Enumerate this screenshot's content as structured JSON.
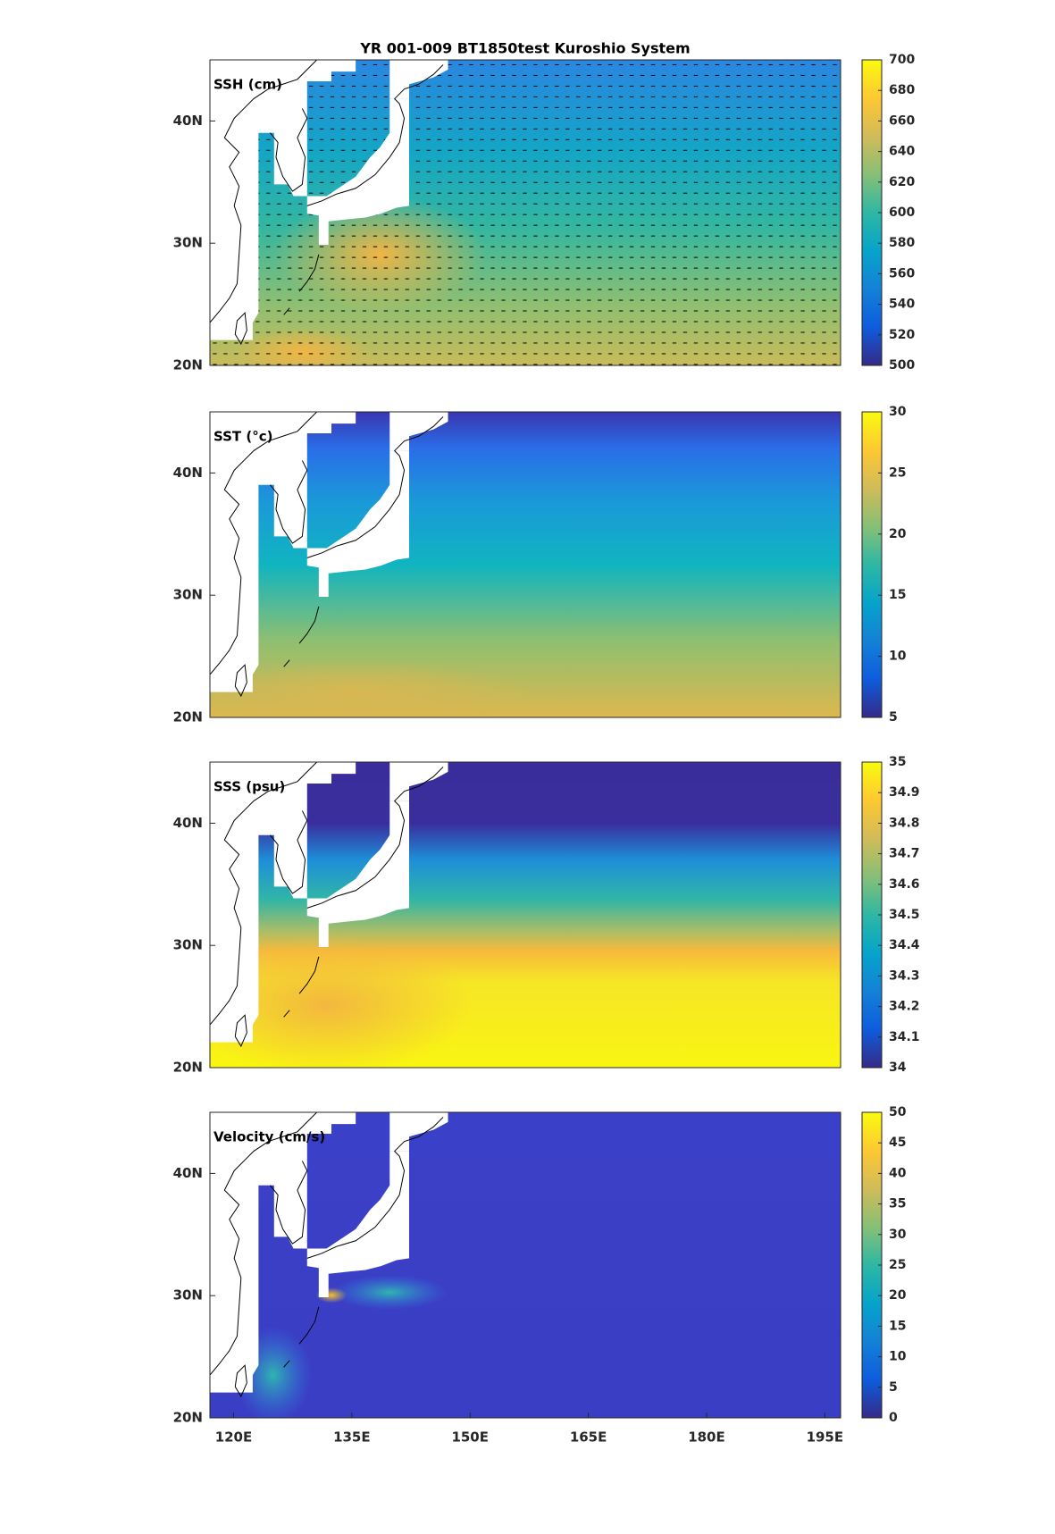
{
  "chart_data": [
    {
      "type": "map",
      "title": "YR 001-009 BT1850test Kuroshio System",
      "label": "SSH (cm)",
      "quiver": true,
      "xlim": [
        117,
        197
      ],
      "ylim": [
        20,
        45
      ],
      "yticks": [
        {
          "value": 20,
          "label": "20N"
        },
        {
          "value": 30,
          "label": "30N"
        },
        {
          "value": 40,
          "label": "40N"
        }
      ],
      "colormap": "parula",
      "clim": [
        500,
        700
      ],
      "cticks": [
        500,
        520,
        540,
        560,
        580,
        600,
        620,
        640,
        660,
        680,
        700
      ]
    },
    {
      "type": "map",
      "label": "SST (°c)",
      "xlim": [
        117,
        197
      ],
      "ylim": [
        20,
        45
      ],
      "yticks": [
        {
          "value": 20,
          "label": "20N"
        },
        {
          "value": 30,
          "label": "30N"
        },
        {
          "value": 40,
          "label": "40N"
        }
      ],
      "colormap": "parula",
      "clim": [
        5,
        30
      ],
      "cticks": [
        5,
        10,
        15,
        20,
        25,
        30
      ]
    },
    {
      "type": "map",
      "label": "SSS (psu)",
      "xlim": [
        117,
        197
      ],
      "ylim": [
        20,
        45
      ],
      "yticks": [
        {
          "value": 20,
          "label": "20N"
        },
        {
          "value": 30,
          "label": "30N"
        },
        {
          "value": 40,
          "label": "40N"
        }
      ],
      "colormap": "parula",
      "clim": [
        34,
        35
      ],
      "cticks": [
        34,
        34.1,
        34.2,
        34.3,
        34.4,
        34.5,
        34.6,
        34.7,
        34.8,
        34.9,
        35
      ]
    },
    {
      "type": "map",
      "label": "Velocity (cm/s)",
      "xlim": [
        117,
        197
      ],
      "ylim": [
        20,
        45
      ],
      "xticks": [
        {
          "value": 120,
          "label": "120E"
        },
        {
          "value": 135,
          "label": "135E"
        },
        {
          "value": 150,
          "label": "150E"
        },
        {
          "value": 165,
          "label": "165E"
        },
        {
          "value": 180,
          "label": "180E"
        },
        {
          "value": 195,
          "label": "195E"
        }
      ],
      "yticks": [
        {
          "value": 20,
          "label": "20N"
        },
        {
          "value": 30,
          "label": "30N"
        },
        {
          "value": 40,
          "label": "40N"
        }
      ],
      "colormap": "parula",
      "clim": [
        0,
        50
      ],
      "cticks": [
        0,
        5,
        10,
        15,
        20,
        25,
        30,
        35,
        40,
        45,
        50
      ]
    }
  ]
}
